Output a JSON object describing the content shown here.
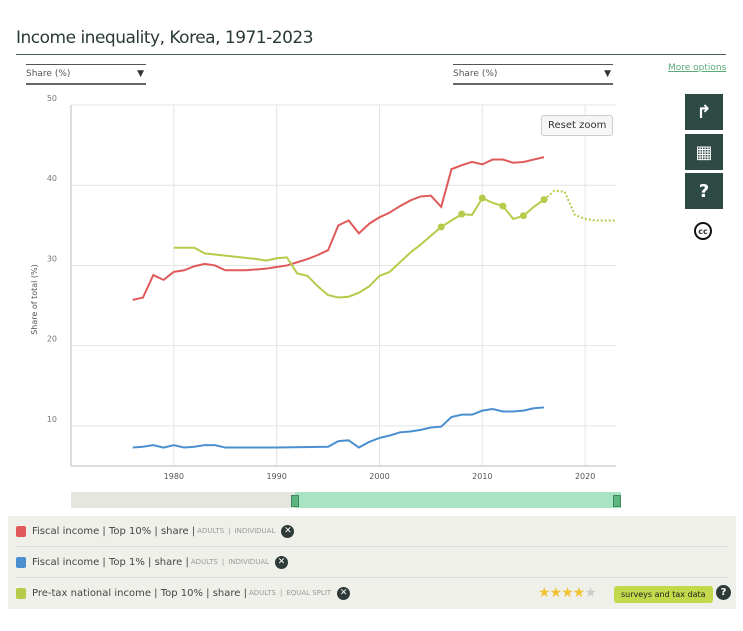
{
  "title": "Income inequality, Korea, 1971-2023",
  "selectors": {
    "left": "Share (%)",
    "right": "Share (%)"
  },
  "more_options": "More options",
  "reset_zoom": "Reset zoom",
  "side_buttons": {
    "share": "↱",
    "table": "▦",
    "help": "?",
    "cc": "cc"
  },
  "legend": [
    {
      "label": "Fiscal income | Top 10% | share |",
      "adults": "ADULTS",
      "sep": "|",
      "unit": "INDIVIDUAL",
      "color": "#e05a5a"
    },
    {
      "label": "Fiscal income | Top 1% | share |",
      "adults": "ADULTS",
      "sep": "|",
      "unit": "INDIVIDUAL",
      "color": "#4a90d0"
    },
    {
      "label": "Pre-tax national income  | Top 10% | share |",
      "adults": "ADULTS",
      "sep": "|",
      "unit": "EQUAL SPLIT",
      "color": "#b5cc4a"
    }
  ],
  "rating": {
    "stars": 4,
    "max": 5,
    "text": "★★★★",
    "empty": "★"
  },
  "source_badge": "surveys and tax data",
  "help": "?",
  "chart_data": {
    "type": "line",
    "ylabel": "Share of total (%)",
    "xlim": [
      1970,
      2023
    ],
    "ylim": [
      5,
      50
    ],
    "xticks": [
      1980,
      1990,
      2000,
      2010,
      2020
    ],
    "yticks": [
      10,
      20,
      30,
      40,
      50
    ],
    "series": [
      {
        "name": "Fiscal income | Top 10% | share",
        "color": "#e05a5a",
        "x": [
          1976,
          1977,
          1978,
          1979,
          1980,
          1981,
          1982,
          1983,
          1984,
          1985,
          1986,
          1987,
          1988,
          1989,
          1990,
          1991,
          1992,
          1993,
          1994,
          1995,
          1996,
          1997,
          1998,
          1999,
          2000,
          2001,
          2002,
          2003,
          2004,
          2005,
          2006,
          2007,
          2008,
          2009,
          2010,
          2011,
          2012,
          2013,
          2014,
          2015,
          2016
        ],
        "y": [
          25.7,
          26,
          28.8,
          28.2,
          29.2,
          29.4,
          29.9,
          30.2,
          30,
          29.4,
          29.4,
          29.4,
          29.5,
          29.6,
          29.8,
          30,
          30.4,
          30.8,
          31.3,
          31.9,
          35,
          35.6,
          34,
          35.2,
          36,
          36.6,
          37.4,
          38.1,
          38.6,
          38.7,
          37.3,
          42,
          42.5,
          42.9,
          42.6,
          43.2,
          43.2,
          42.8,
          42.9,
          43.2,
          43.5
        ]
      },
      {
        "name": "Fiscal income | Top 1% | share",
        "color": "#4a90d0",
        "x": [
          1976,
          1977,
          1978,
          1979,
          1980,
          1981,
          1982,
          1983,
          1984,
          1985,
          1990,
          1995,
          1996,
          1997,
          1998,
          1999,
          2000,
          2001,
          2002,
          2003,
          2004,
          2005,
          2006,
          2007,
          2008,
          2009,
          2010,
          2011,
          2012,
          2013,
          2014,
          2015,
          2016
        ],
        "y": [
          7.3,
          7.4,
          7.6,
          7.3,
          7.6,
          7.3,
          7.4,
          7.6,
          7.6,
          7.3,
          7.3,
          7.4,
          8.1,
          8.2,
          7.3,
          8.0,
          8.5,
          8.8,
          9.2,
          9.3,
          9.5,
          9.8,
          9.9,
          11.1,
          11.4,
          11.4,
          11.9,
          12.1,
          11.8,
          11.8,
          11.9,
          12.2,
          12.3
        ]
      },
      {
        "name": "Pre-tax national income | Top 10% | share",
        "color": "#b5cc4a",
        "x": [
          1980,
          1982,
          1983,
          1988,
          1989,
          1990,
          1991,
          1992,
          1993,
          1994,
          1995,
          1996,
          1997,
          1998,
          1999,
          2000,
          2001,
          2002,
          2003,
          2004,
          2005,
          2006,
          2007,
          2008,
          2009,
          2010,
          2011,
          2012,
          2013,
          2014,
          2015,
          2016
        ],
        "y": [
          32.2,
          32.2,
          31.5,
          30.8,
          30.6,
          30.9,
          31,
          29,
          28.7,
          27.4,
          26.3,
          26,
          26.1,
          26.6,
          27.4,
          28.7,
          29.2,
          30.4,
          31.6,
          32.6,
          33.7,
          34.8,
          35.6,
          36.4,
          36.3,
          38.4,
          37.8,
          37.4,
          35.8,
          36.2,
          37.3,
          38.2
        ],
        "markers": [
          2006,
          2008,
          2010,
          2012,
          2014,
          2016
        ],
        "dotted_x": [
          2016,
          2017,
          2018,
          2019,
          2020,
          2021,
          2022,
          2023
        ],
        "dotted_y": [
          38.2,
          39.3,
          39.2,
          36.3,
          35.8,
          35.6,
          35.6,
          35.6
        ]
      }
    ]
  }
}
